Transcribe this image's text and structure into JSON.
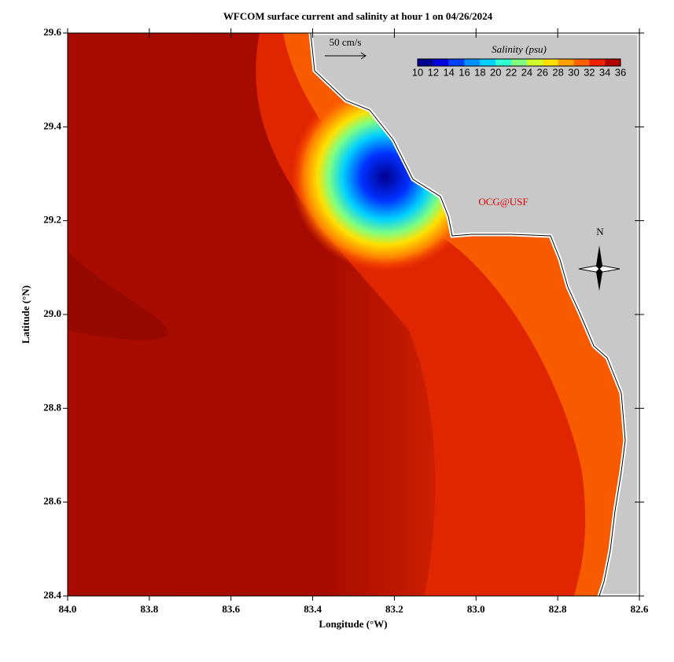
{
  "chart_data": {
    "type": "map",
    "title": "WFCOM surface current and salinity at hour 1 on 04/26/2024",
    "xlabel": "Longitude (°W)",
    "ylabel": "Latitude (°N)",
    "xlim": [
      84.0,
      82.6
    ],
    "ylim": [
      28.4,
      29.6
    ],
    "xticks": [
      {
        "value": 84.0,
        "label": "84.0"
      },
      {
        "value": 83.8,
        "label": "83.8"
      },
      {
        "value": 83.6,
        "label": "83.6"
      },
      {
        "value": 83.4,
        "label": "83.4"
      },
      {
        "value": 83.2,
        "label": "83.2"
      },
      {
        "value": 83.0,
        "label": "83.0"
      },
      {
        "value": 82.8,
        "label": "82.8"
      },
      {
        "value": 82.6,
        "label": "82.6"
      }
    ],
    "yticks": [
      {
        "value": 28.4,
        "label": "28.4"
      },
      {
        "value": 28.6,
        "label": "28.6"
      },
      {
        "value": 28.8,
        "label": "28.8"
      },
      {
        "value": 29.0,
        "label": "29.0"
      },
      {
        "value": 29.2,
        "label": "29.2"
      },
      {
        "value": 29.4,
        "label": "29.4"
      },
      {
        "value": 29.6,
        "label": "29.6"
      }
    ],
    "scale_label": "50 cm/s",
    "credit": "OCG@USF",
    "north_label": "N",
    "colorbar": {
      "title": "Salinity (psu)",
      "ticks": [
        10,
        12,
        14,
        16,
        18,
        20,
        22,
        24,
        26,
        28,
        30,
        32,
        34,
        36
      ],
      "colors": [
        "#000090",
        "#0000e0",
        "#0040ff",
        "#0090ff",
        "#00d0ff",
        "#30ffd0",
        "#80ff80",
        "#d0ff30",
        "#ffe000",
        "#ffa000",
        "#ff6000",
        "#f02000",
        "#b00000"
      ]
    }
  }
}
